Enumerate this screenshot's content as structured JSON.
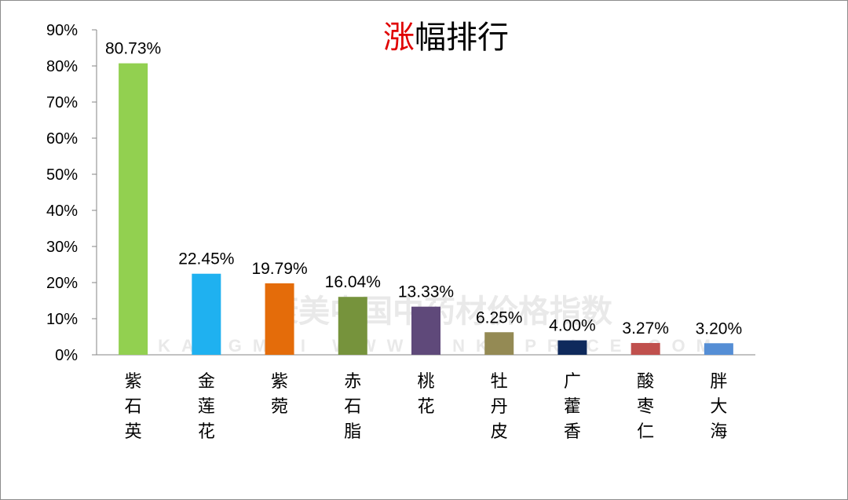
{
  "chart_data": {
    "type": "bar",
    "title_highlight": "涨",
    "title_rest": "幅排行",
    "categories": [
      "紫石英",
      "金莲花",
      "紫菀",
      "赤石脂",
      "桃花",
      "牡丹皮",
      "广藿香",
      "酸枣仁",
      "胖大海"
    ],
    "values": [
      80.73,
      22.45,
      19.79,
      16.04,
      13.33,
      6.25,
      4.0,
      3.27,
      3.2
    ],
    "data_labels": [
      "80.73%",
      "22.45%",
      "19.79%",
      "16.04%",
      "13.33%",
      "6.25%",
      "4.00%",
      "3.27%",
      "3.20%"
    ],
    "colors": [
      "#92d050",
      "#1fb1f0",
      "#e46c0a",
      "#76933c",
      "#5f497a",
      "#948a54",
      "#0f2a5c",
      "#c0504d",
      "#558ed5"
    ],
    "ylim": [
      0,
      90
    ],
    "yticks": [
      "0%",
      "10%",
      "20%",
      "30%",
      "40%",
      "50%",
      "60%",
      "70%",
      "80%",
      "90%"
    ],
    "grid": false,
    "legend": "none"
  },
  "watermark": {
    "cn": "康美中国中药材价格指数",
    "en": "KANGMEI WWW.CNKMPRICE.COM"
  }
}
